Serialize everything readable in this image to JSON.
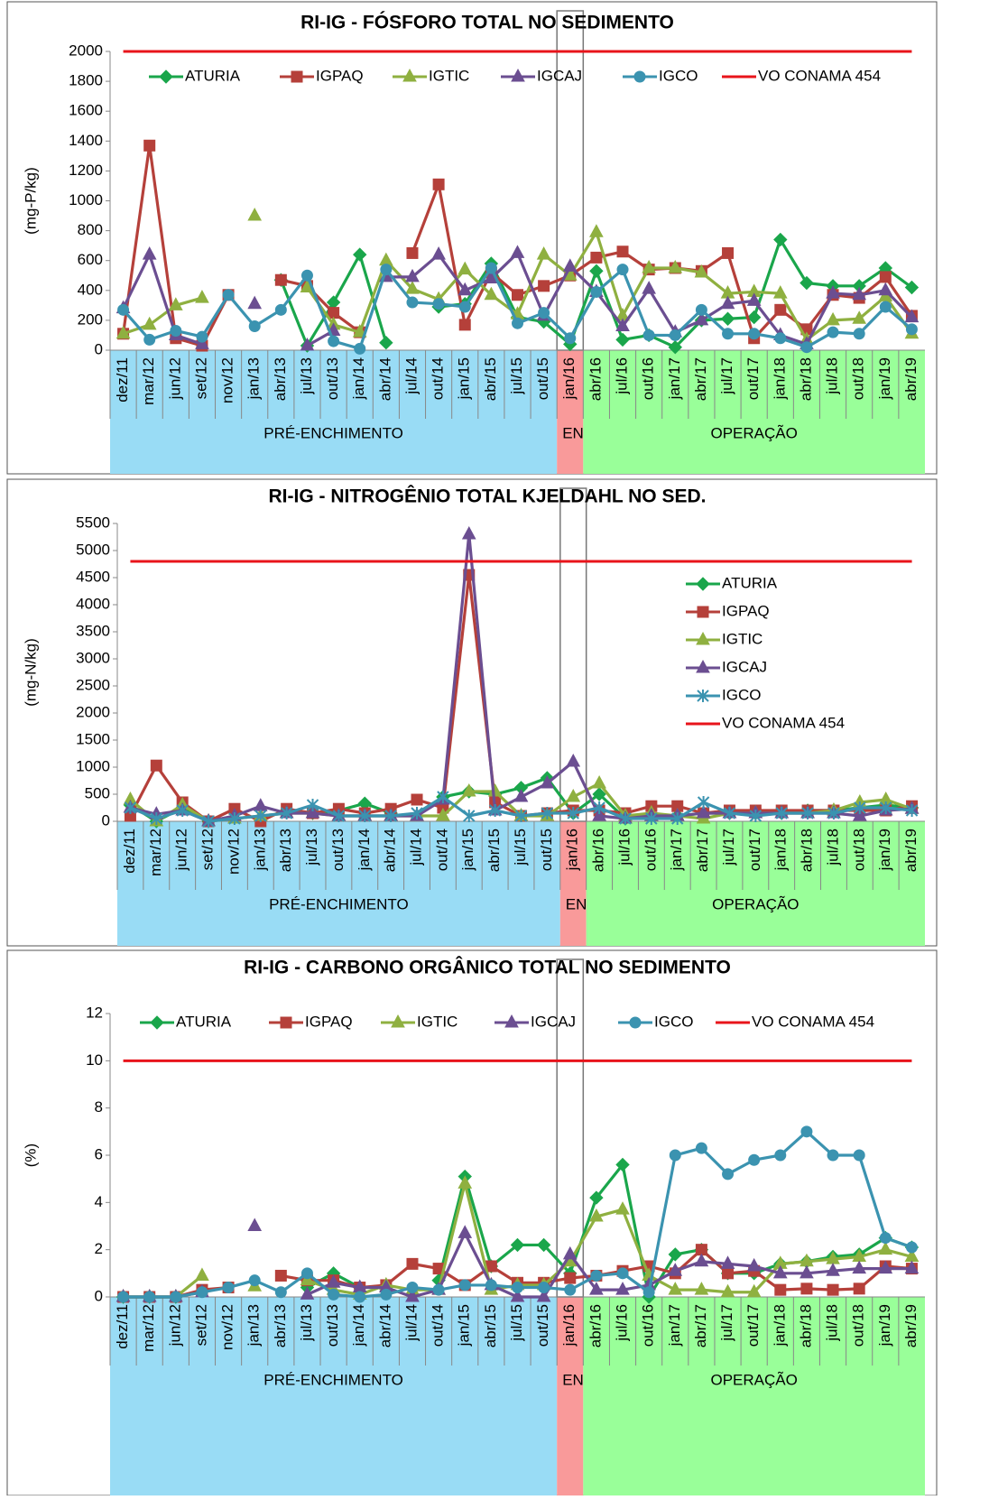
{
  "chart_data": [
    {
      "type": "line",
      "title": "RI-IG - FÓSFORO TOTAL NO SEDIMENTO",
      "y_label": "(mg-P/kg)",
      "legend": "top",
      "categories": [
        "dez/11",
        "mar/12",
        "jun/12",
        "set/12",
        "nov/12",
        "jan/13",
        "abr/13",
        "jul/13",
        "out/13",
        "jan/14",
        "abr/14",
        "jul/14",
        "out/14",
        "jan/15",
        "abr/15",
        "jul/15",
        "out/15",
        "jan/16",
        "abr/16",
        "jul/16",
        "out/16",
        "jan/17",
        "abr/17",
        "jul/17",
        "out/17",
        "jan/18",
        "abr/18",
        "jul/18",
        "out/18",
        "jan/19",
        "abr/19"
      ],
      "ylim": [
        0,
        2000
      ],
      "yticks": [
        0,
        200,
        400,
        600,
        800,
        1000,
        1200,
        1400,
        1600,
        1800,
        2000
      ],
      "phases": [
        {
          "label": "PRÉ-ENCHIMENTO",
          "color": "#99dcf5"
        },
        {
          "label": "ENCH.",
          "color": "#f99a9a"
        },
        {
          "label": "OPERAÇÃO",
          "color": "#99ff99"
        }
      ],
      "series": [
        {
          "name": "ATURIA",
          "color": "#1aa64b",
          "marker": "diamond",
          "values": [
            null,
            null,
            null,
            null,
            null,
            null,
            470,
            30,
            320,
            640,
            50,
            null,
            290,
            310,
            580,
            220,
            190,
            40,
            530,
            70,
            100,
            20,
            200,
            210,
            220,
            740,
            450,
            430,
            430,
            550,
            420
          ]
        },
        {
          "name": "IGPAQ",
          "color": "#b5403a",
          "marker": "square",
          "values": [
            110,
            1370,
            80,
            30,
            370,
            null,
            470,
            430,
            250,
            120,
            null,
            650,
            1110,
            170,
            520,
            370,
            430,
            500,
            620,
            660,
            540,
            550,
            530,
            650,
            80,
            270,
            140,
            370,
            350,
            490,
            230
          ]
        },
        {
          "name": "IGTIC",
          "color": "#8fb040",
          "marker": "triangle",
          "values": [
            110,
            170,
            300,
            350,
            null,
            900,
            null,
            420,
            170,
            120,
            600,
            410,
            340,
            540,
            370,
            240,
            640,
            500,
            790,
            230,
            550,
            550,
            520,
            380,
            390,
            380,
            70,
            200,
            210,
            360,
            110
          ]
        },
        {
          "name": "IGCAJ",
          "color": "#6b4e91",
          "marker": "triangle",
          "values": [
            280,
            640,
            100,
            40,
            null,
            310,
            null,
            30,
            130,
            null,
            490,
            490,
            640,
            400,
            480,
            650,
            230,
            560,
            390,
            160,
            410,
            120,
            200,
            310,
            330,
            100,
            40,
            380,
            370,
            400,
            220
          ]
        },
        {
          "name": "IGCO",
          "color": "#3b93b0",
          "marker": "circle",
          "values": [
            270,
            70,
            130,
            90,
            370,
            160,
            270,
            500,
            60,
            10,
            540,
            320,
            310,
            290,
            550,
            180,
            250,
            80,
            390,
            540,
            100,
            100,
            270,
            110,
            110,
            80,
            20,
            120,
            110,
            290,
            140
          ]
        },
        {
          "name": "VO CONAMA 454",
          "color": "#e8141b",
          "marker": "none",
          "values": [
            2000,
            2000,
            2000,
            2000,
            2000,
            2000,
            2000,
            2000,
            2000,
            2000,
            2000,
            2000,
            2000,
            2000,
            2000,
            2000,
            2000,
            2000,
            2000,
            2000,
            2000,
            2000,
            2000,
            2000,
            2000,
            2000,
            2000,
            2000,
            2000,
            2000,
            2000
          ]
        }
      ]
    },
    {
      "type": "line",
      "title": "RI-IG - NITROGÊNIO TOTAL KJELDAHL NO SED.",
      "y_label": "(mg-N/kg)",
      "legend": "right",
      "categories": [
        "dez/11",
        "mar/12",
        "jun/12",
        "set/12",
        "nov/12",
        "jan/13",
        "abr/13",
        "jul/13",
        "out/13",
        "jan/14",
        "abr/14",
        "jul/14",
        "out/14",
        "jan/15",
        "abr/15",
        "jul/15",
        "out/15",
        "jan/16",
        "abr/16",
        "jul/16",
        "out/16",
        "jan/17",
        "abr/17",
        "jul/17",
        "out/17",
        "jan/18",
        "abr/18",
        "jul/18",
        "out/18",
        "jan/19",
        "abr/19"
      ],
      "ylim": [
        0,
        5500
      ],
      "yticks": [
        0,
        500,
        1000,
        1500,
        2000,
        2500,
        3000,
        3500,
        4000,
        4500,
        5000,
        5500
      ],
      "phases": [
        {
          "label": "PRÉ-ENCHIMENTO",
          "color": "#99dcf5"
        },
        {
          "label": "ENCH.",
          "color": "#f99a9a"
        },
        {
          "label": "OPERAÇÃO",
          "color": "#99ff99"
        }
      ],
      "series": [
        {
          "name": "ATURIA",
          "color": "#1aa64b",
          "marker": "diamond",
          "values": [
            300,
            0,
            250,
            0,
            null,
            null,
            200,
            150,
            200,
            330,
            150,
            null,
            450,
            550,
            500,
            620,
            800,
            150,
            500,
            50,
            100,
            100,
            150,
            150,
            150,
            150,
            200,
            200,
            250,
            300,
            250
          ]
        },
        {
          "name": "IGPAQ",
          "color": "#b5403a",
          "marker": "square",
          "values": [
            100,
            1030,
            350,
            0,
            230,
            0,
            230,
            150,
            230,
            150,
            230,
            400,
            250,
            4550,
            350,
            100,
            150,
            200,
            200,
            150,
            280,
            280,
            150,
            200,
            200,
            200,
            200,
            200,
            200,
            200,
            280
          ]
        },
        {
          "name": "IGTIC",
          "color": "#8fb040",
          "marker": "triangle",
          "values": [
            400,
            0,
            300,
            0,
            50,
            100,
            150,
            150,
            100,
            100,
            100,
            100,
            100,
            550,
            550,
            100,
            100,
            450,
            700,
            100,
            150,
            100,
            50,
            150,
            150,
            150,
            150,
            200,
            350,
            400,
            230
          ]
        },
        {
          "name": "IGCAJ",
          "color": "#6b4e91",
          "marker": "triangle",
          "values": [
            250,
            130,
            200,
            0,
            100,
            280,
            150,
            150,
            100,
            100,
            100,
            100,
            400,
            5300,
            200,
            450,
            700,
            1100,
            100,
            50,
            100,
            100,
            150,
            150,
            150,
            150,
            150,
            150,
            100,
            200,
            230
          ]
        },
        {
          "name": "IGCO",
          "color": "#3b93b0",
          "marker": "asterisk",
          "values": [
            250,
            50,
            200,
            0,
            50,
            100,
            150,
            300,
            100,
            100,
            100,
            150,
            450,
            100,
            200,
            100,
            150,
            150,
            250,
            50,
            50,
            50,
            350,
            150,
            100,
            150,
            150,
            150,
            250,
            250,
            200
          ]
        },
        {
          "name": "VO CONAMA 454",
          "color": "#e8141b",
          "marker": "none",
          "values": [
            4800,
            4800,
            4800,
            4800,
            4800,
            4800,
            4800,
            4800,
            4800,
            4800,
            4800,
            4800,
            4800,
            4800,
            4800,
            4800,
            4800,
            4800,
            4800,
            4800,
            4800,
            4800,
            4800,
            4800,
            4800,
            4800,
            4800,
            4800,
            4800,
            4800,
            4800
          ]
        }
      ]
    },
    {
      "type": "line",
      "title": "RI-IG - CARBONO ORGÂNICO TOTAL NO SEDIMENTO",
      "y_label": "(%)",
      "legend": "top",
      "categories": [
        "dez/11",
        "mar/12",
        "jun/12",
        "set/12",
        "nov/12",
        "jan/13",
        "abr/13",
        "jul/13",
        "out/13",
        "jan/14",
        "abr/14",
        "jul/14",
        "out/14",
        "jan/15",
        "abr/15",
        "jul/15",
        "out/15",
        "jan/16",
        "abr/16",
        "jul/16",
        "out/16",
        "jan/17",
        "abr/17",
        "jul/17",
        "out/17",
        "jan/18",
        "abr/18",
        "jul/18",
        "out/18",
        "jan/19",
        "abr/19"
      ],
      "ylim": [
        0,
        12
      ],
      "yticks": [
        0,
        2,
        4,
        6,
        8,
        10,
        12
      ],
      "phases": [
        {
          "label": "PRÉ-ENCHIMENTO",
          "color": "#99dcf5"
        },
        {
          "label": "ENCH.",
          "color": "#f99a9a"
        },
        {
          "label": "OPERAÇÃO",
          "color": "#99ff99"
        }
      ],
      "series": [
        {
          "name": "ATURIA",
          "color": "#1aa64b",
          "marker": "diamond",
          "values": [
            0,
            0,
            0,
            null,
            null,
            null,
            null,
            0.4,
            1.0,
            0.4,
            0.4,
            null,
            0.7,
            5.1,
            1.3,
            2.2,
            2.2,
            1.0,
            4.2,
            5.6,
            0,
            1.8,
            2.0,
            1.0,
            1.0,
            1.4,
            1.5,
            1.7,
            1.8,
            2.5,
            2.1
          ]
        },
        {
          "name": "IGPAQ",
          "color": "#b5403a",
          "marker": "square",
          "values": [
            0,
            0,
            0,
            0.3,
            0.4,
            null,
            0.9,
            0.7,
            0.7,
            0.4,
            0.5,
            1.4,
            1.2,
            0.5,
            1.3,
            0.6,
            0.6,
            0.8,
            0.9,
            1.1,
            1.3,
            1.0,
            2.0,
            1.0,
            1.1,
            0.3,
            0.35,
            0.3,
            0.35,
            1.3,
            1.2
          ]
        },
        {
          "name": "IGTIC",
          "color": "#8fb040",
          "marker": "triangle",
          "values": [
            0,
            0,
            0,
            0.9,
            null,
            0.45,
            null,
            0.7,
            0.3,
            0.1,
            0.5,
            0.3,
            0.3,
            4.8,
            0.3,
            0.5,
            0.5,
            1.5,
            3.4,
            3.7,
            0.9,
            0.3,
            0.3,
            0.2,
            0.2,
            1.4,
            1.5,
            1.6,
            1.7,
            2.0,
            1.7
          ]
        },
        {
          "name": "IGCAJ",
          "color": "#6b4e91",
          "marker": "triangle",
          "values": [
            0,
            0,
            0,
            0.2,
            null,
            3.0,
            null,
            0.1,
            0.6,
            0.4,
            0.4,
            0,
            0.3,
            2.7,
            0.5,
            0,
            0,
            1.8,
            0.3,
            0.3,
            0.5,
            1.1,
            1.5,
            1.4,
            1.3,
            1.0,
            1.0,
            1.1,
            1.2,
            1.2,
            1.2
          ]
        },
        {
          "name": "IGCO",
          "color": "#3b93b0",
          "marker": "circle",
          "values": [
            0,
            0,
            0,
            0.2,
            0.4,
            0.7,
            0.2,
            1.0,
            0.1,
            0,
            0.1,
            0.4,
            0.3,
            0.5,
            0.5,
            0.4,
            0.4,
            0.3,
            0.9,
            1.0,
            0.2,
            6.0,
            6.3,
            5.2,
            5.8,
            6.0,
            7.0,
            6.0,
            6.0,
            2.5,
            2.1
          ]
        },
        {
          "name": "VO CONAMA 454",
          "color": "#e8141b",
          "marker": "none",
          "values": [
            10,
            10,
            10,
            10,
            10,
            10,
            10,
            10,
            10,
            10,
            10,
            10,
            10,
            10,
            10,
            10,
            10,
            10,
            10,
            10,
            10,
            10,
            10,
            10,
            10,
            10,
            10,
            10,
            10,
            10,
            10
          ]
        }
      ]
    }
  ]
}
